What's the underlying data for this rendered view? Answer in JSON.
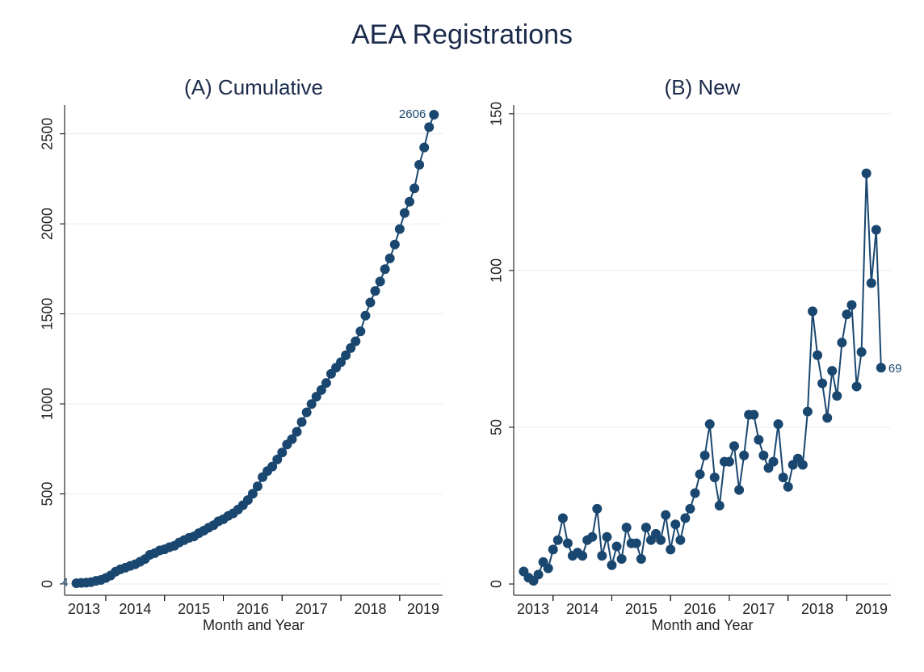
{
  "title": "AEA Registrations",
  "chart_data": [
    {
      "type": "line",
      "title": "(A) Cumulative",
      "xlabel": "Month and Year",
      "color": "#1a476f",
      "grid": true,
      "x": [
        2013.5,
        2013.583,
        2013.667,
        2013.75,
        2013.833,
        2013.917,
        2014,
        2014.083,
        2014.167,
        2014.25,
        2014.333,
        2014.417,
        2014.5,
        2014.583,
        2014.667,
        2014.75,
        2014.833,
        2014.917,
        2015,
        2015.083,
        2015.167,
        2015.25,
        2015.333,
        2015.417,
        2015.5,
        2015.583,
        2015.667,
        2015.75,
        2015.833,
        2015.917,
        2016,
        2016.083,
        2016.167,
        2016.25,
        2016.333,
        2016.417,
        2016.5,
        2016.583,
        2016.667,
        2016.75,
        2016.833,
        2016.917,
        2017,
        2017.083,
        2017.167,
        2017.25,
        2017.333,
        2017.417,
        2017.5,
        2017.583,
        2017.667,
        2017.75,
        2017.833,
        2017.917,
        2018,
        2018.083,
        2018.167,
        2018.25,
        2018.333,
        2018.417,
        2018.5,
        2018.583,
        2018.667,
        2018.75,
        2018.833,
        2018.917,
        2019,
        2019.083,
        2019.167,
        2019.25,
        2019.333,
        2019.417,
        2019.5,
        2019.583
      ],
      "series": [
        {
          "name": "Cumulative",
          "color": "#1a476f",
          "values": [
            4,
            6,
            7,
            10,
            17,
            22,
            33,
            47,
            68,
            81,
            90,
            100,
            109,
            123,
            138,
            162,
            171,
            186,
            192,
            204,
            212,
            230,
            243,
            256,
            264,
            282,
            296,
            312,
            326,
            348,
            359,
            378,
            392,
            413,
            437,
            466,
            501,
            542,
            593,
            627,
            652,
            691,
            730,
            774,
            804,
            845,
            899,
            953,
            999,
            1040,
            1077,
            1116,
            1167,
            1201,
            1232,
            1270,
            1310,
            1348,
            1403,
            1490,
            1563,
            1627,
            1680,
            1748,
            1808,
            1885,
            1971,
            2060,
            2123,
            2197,
            2328,
            2424,
            2537,
            2606
          ]
        }
      ],
      "xlim": [
        2013.3,
        2019.73
      ],
      "xticks": [
        {
          "value": 2013.5,
          "label": "2013"
        },
        {
          "value": 2014.5,
          "label": "2014"
        },
        {
          "value": 2015.5,
          "label": "2015"
        },
        {
          "value": 2016.5,
          "label": "2016"
        },
        {
          "value": 2017.5,
          "label": "2017"
        },
        {
          "value": 2018.5,
          "label": "2018"
        },
        {
          "value": 2019.5,
          "label": "2019"
        }
      ],
      "ylim": [
        -63,
        2660
      ],
      "yticks": [
        0,
        500,
        1000,
        1500,
        2000,
        2500
      ]
    },
    {
      "type": "line",
      "title": "(B) New",
      "xlabel": "Month and Year",
      "color": "#1a476f",
      "grid": true,
      "x": [
        2013.5,
        2013.583,
        2013.667,
        2013.75,
        2013.833,
        2013.917,
        2014,
        2014.083,
        2014.167,
        2014.25,
        2014.333,
        2014.417,
        2014.5,
        2014.583,
        2014.667,
        2014.75,
        2014.833,
        2014.917,
        2015,
        2015.083,
        2015.167,
        2015.25,
        2015.333,
        2015.417,
        2015.5,
        2015.583,
        2015.667,
        2015.75,
        2015.833,
        2015.917,
        2016,
        2016.083,
        2016.167,
        2016.25,
        2016.333,
        2016.417,
        2016.5,
        2016.583,
        2016.667,
        2016.75,
        2016.833,
        2016.917,
        2017,
        2017.083,
        2017.167,
        2017.25,
        2017.333,
        2017.417,
        2017.5,
        2017.583,
        2017.667,
        2017.75,
        2017.833,
        2017.917,
        2018,
        2018.083,
        2018.167,
        2018.25,
        2018.333,
        2018.417,
        2018.5,
        2018.583,
        2018.667,
        2018.75,
        2018.833,
        2018.917,
        2019,
        2019.083,
        2019.167,
        2019.25,
        2019.333,
        2019.417,
        2019.5,
        2019.583
      ],
      "series": [
        {
          "name": "New",
          "color": "#1a476f",
          "values": [
            4,
            2,
            1,
            3,
            7,
            5,
            11,
            14,
            21,
            13,
            9,
            10,
            9,
            14,
            15,
            24,
            9,
            15,
            6,
            12,
            8,
            18,
            13,
            13,
            8,
            18,
            14,
            16,
            14,
            22,
            11,
            19,
            14,
            21,
            24,
            29,
            35,
            41,
            51,
            34,
            25,
            39,
            39,
            44,
            30,
            41,
            54,
            54,
            46,
            41,
            37,
            39,
            51,
            34,
            31,
            38,
            40,
            38,
            55,
            87,
            73,
            64,
            53,
            68,
            60,
            77,
            86,
            89,
            63,
            74,
            131,
            96,
            113,
            69
          ]
        }
      ],
      "xlim": [
        2013.33,
        2019.75
      ],
      "xticks": [
        {
          "value": 2013.5,
          "label": "2013"
        },
        {
          "value": 2014.5,
          "label": "2014"
        },
        {
          "value": 2015.5,
          "label": "2015"
        },
        {
          "value": 2016.5,
          "label": "2016"
        },
        {
          "value": 2017.5,
          "label": "2017"
        },
        {
          "value": 2018.5,
          "label": "2018"
        },
        {
          "value": 2019.5,
          "label": "2019"
        }
      ],
      "ylim": [
        -3.6,
        152.8
      ],
      "yticks": [
        0,
        50,
        100,
        150
      ]
    }
  ]
}
